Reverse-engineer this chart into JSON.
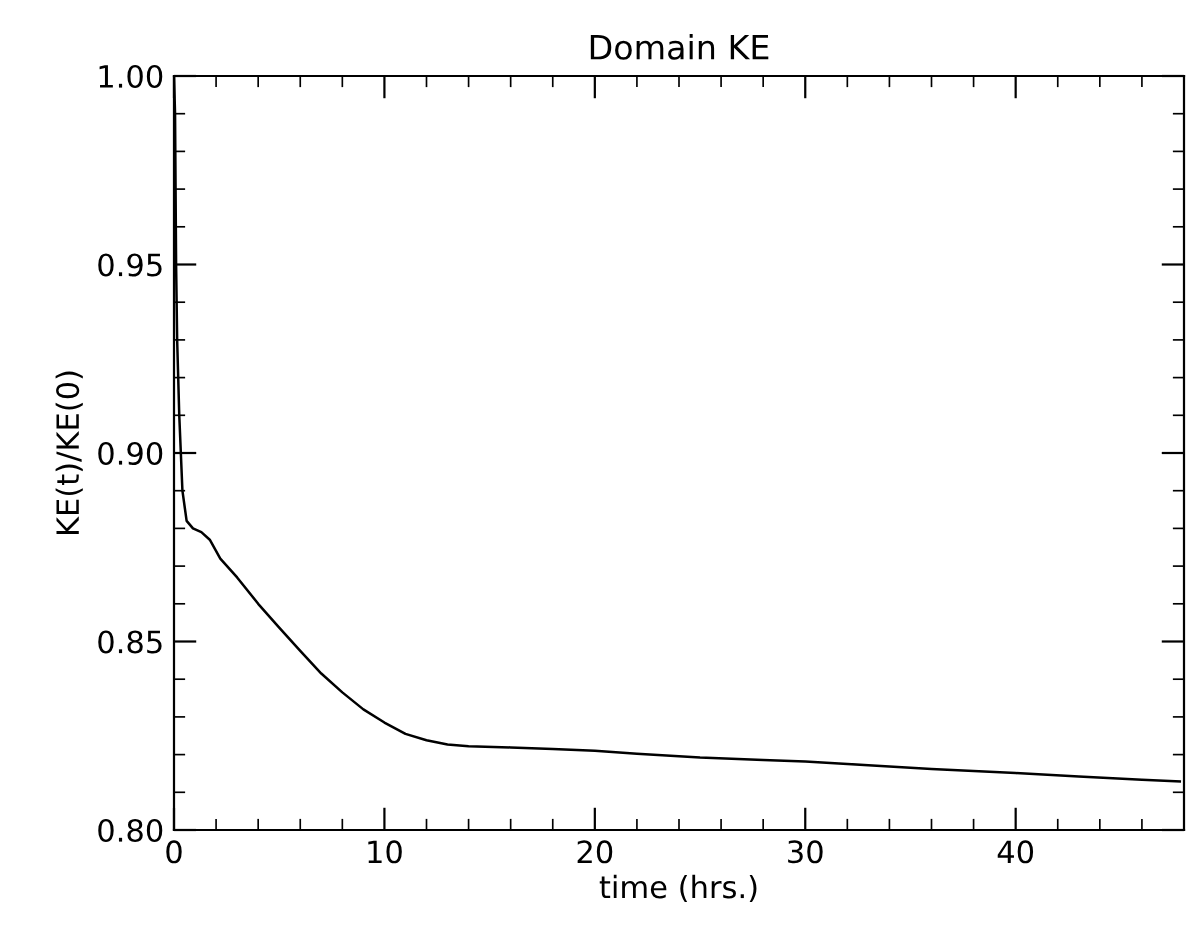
{
  "chart_data": {
    "type": "line",
    "title": "Domain KE",
    "xlabel": "time (hrs.)",
    "ylabel": "KE(t)/KE(0)",
    "x": [
      0,
      0.05,
      0.1,
      0.15,
      0.25,
      0.4,
      0.6,
      0.9,
      1.3,
      1.7,
      2.2,
      3,
      4,
      5,
      6,
      7,
      8,
      9,
      10,
      11,
      12,
      13,
      14,
      16,
      18,
      20,
      22,
      25,
      28,
      30,
      33,
      36,
      40,
      43,
      46,
      47.8
    ],
    "series": [
      {
        "color": "#000000",
        "values": [
          1.0,
          0.99,
          0.95,
          0.93,
          0.91,
          0.89,
          0.882,
          0.88,
          0.879,
          0.877,
          0.872,
          0.867,
          0.86,
          0.8537,
          0.8475,
          0.8415,
          0.8365,
          0.832,
          0.8285,
          0.8255,
          0.8238,
          0.8227,
          0.8222,
          0.8219,
          0.8215,
          0.821,
          0.8202,
          0.8192,
          0.8186,
          0.8182,
          0.8172,
          0.8162,
          0.8151,
          0.8142,
          0.8133,
          0.8129
        ]
      }
    ],
    "xlim": [
      0,
      48
    ],
    "ylim": [
      0.8,
      1.0
    ],
    "xticks": [
      0,
      10,
      20,
      30,
      40
    ],
    "yticks": [
      {
        "value": 0.8,
        "label": "0.80"
      },
      {
        "value": 0.85,
        "label": "0.85"
      },
      {
        "value": 0.9,
        "label": "0.90"
      },
      {
        "value": 0.95,
        "label": "0.95"
      },
      {
        "value": 1.0,
        "label": "1.00"
      }
    ],
    "grid": false,
    "legend": false
  }
}
